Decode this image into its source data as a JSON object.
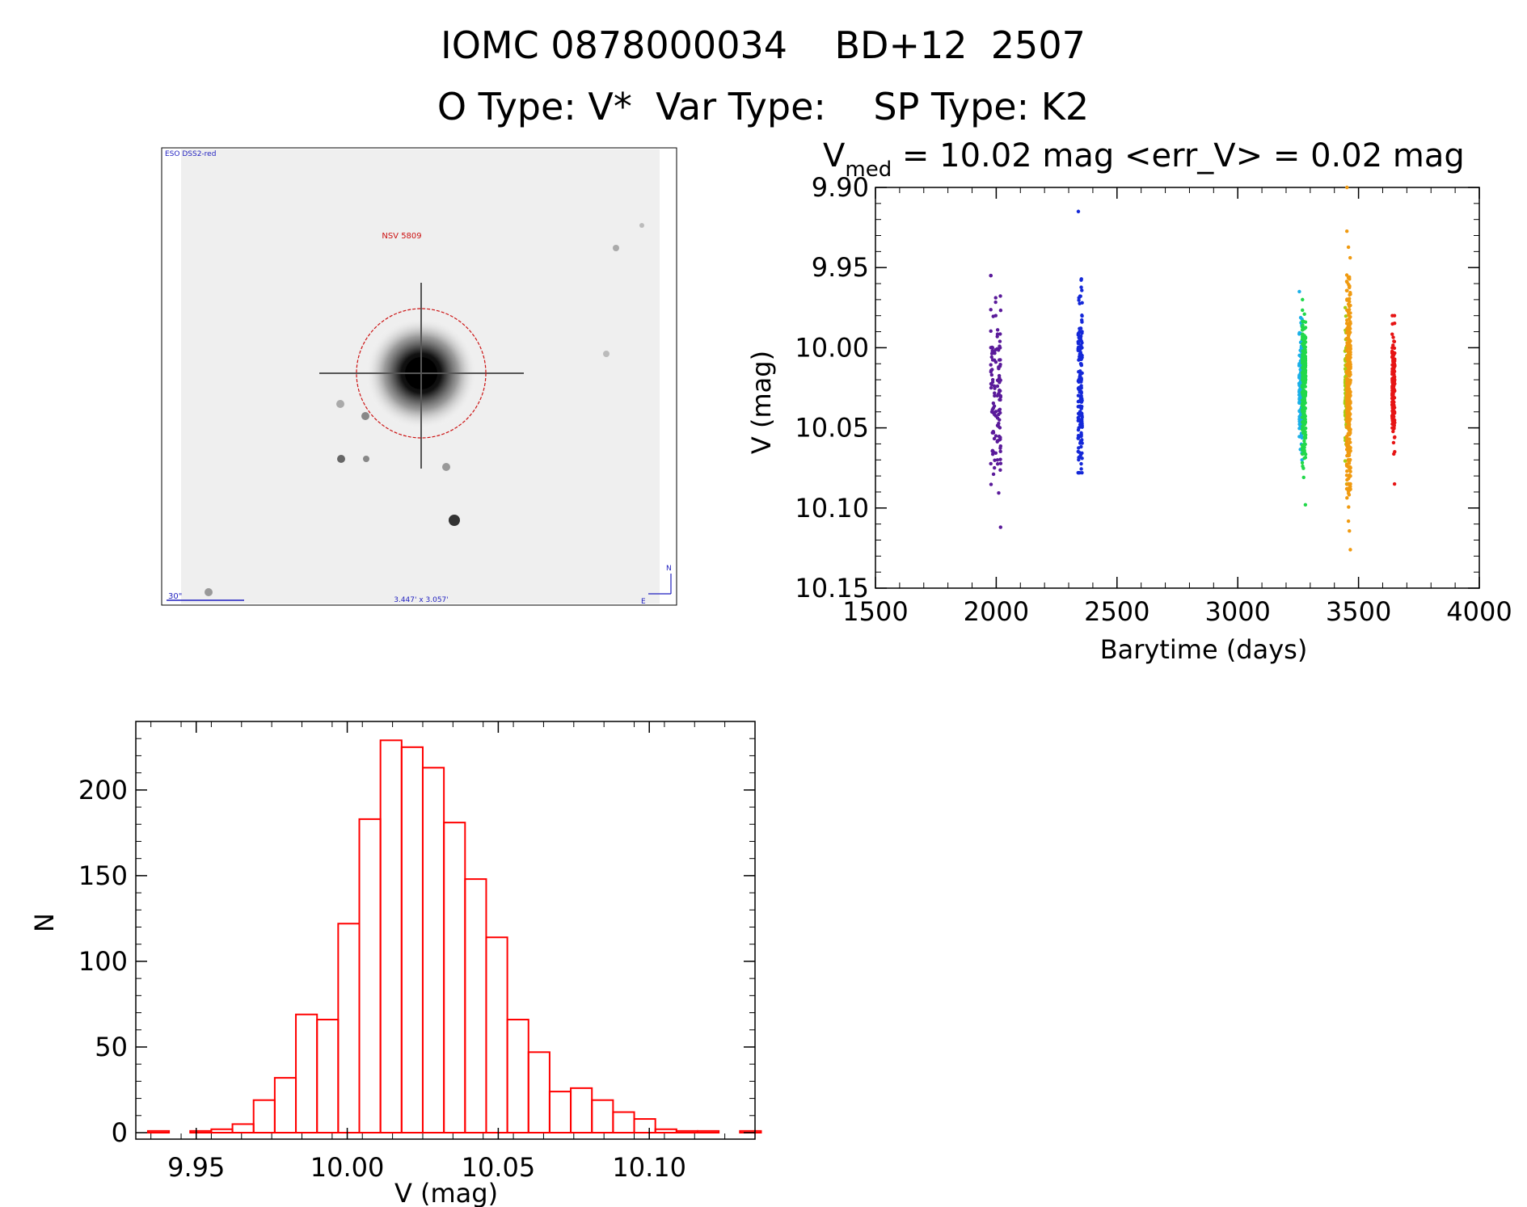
{
  "header": {
    "title": "IOMC 0878000034    BD+12  2507",
    "subtitle": "O Type: V*  Var Type:    SP Type: K2"
  },
  "finder": {
    "survey_label": "ESO DSS2-red",
    "object_label": "NSV 5809",
    "scale_label": "30\"",
    "fov_label": "3.447' x 3.057'",
    "north_label": "N",
    "east_label": "E"
  },
  "colors": {
    "axis": "#000000",
    "histogram": "#ff0000",
    "finder_annotations": "#1f1fbf",
    "finder_circle": "#cc1111"
  },
  "chart_data": [
    {
      "type": "scatter",
      "title_parts": {
        "v": "V",
        "sub": "med",
        "rest": " = 10.02 mag <err_V> = 0.02 mag"
      },
      "xlabel": "Barytime (days)",
      "ylabel": "V (mag)",
      "xlim": [
        1500,
        4000
      ],
      "ylim": [
        9.9,
        10.15
      ],
      "y_inverted": true,
      "xticks": [
        1500,
        2000,
        2500,
        3000,
        3500,
        4000
      ],
      "xtick_labels": [
        "1500",
        "2000",
        "2500",
        "3000",
        "3500",
        "4000"
      ],
      "yticks": [
        9.9,
        9.95,
        10.0,
        10.05,
        10.1,
        10.15
      ],
      "ytick_labels": [
        "9.90",
        "9.95",
        "10.00",
        "10.05",
        "10.10",
        "10.15"
      ],
      "grid": false,
      "series": [
        {
          "color": "#5a1a9a",
          "x": [
            1978,
            1982,
            1985,
            1988,
            1993,
            1998,
            2005,
            2010,
            2013,
            2016,
            2018
          ],
          "y": [
            10.015,
            10.04,
            10.0,
            10.065,
            10.03,
            9.98,
            10.07,
            10.02,
            10.045,
            10.0,
            10.03
          ],
          "y_min": 9.955,
          "y_max": 10.112,
          "n": 110
        },
        {
          "color": "#1428d8",
          "x": [
            2340,
            2342,
            2345,
            2348,
            2350,
            2352,
            2355
          ],
          "y": [
            10.0,
            10.02,
            9.99,
            10.04,
            10.01,
            10.03,
            10.0
          ],
          "y_min": 9.915,
          "y_max": 10.078,
          "n": 160
        },
        {
          "color": "#1ab0e8",
          "x": [
            3255,
            3260,
            3263,
            3266
          ],
          "y": [
            10.01,
            10.03,
            10.0,
            10.02
          ],
          "y_min": 9.965,
          "y_max": 10.07,
          "n": 140
        },
        {
          "color": "#22d84a",
          "x": [
            3268,
            3272,
            3276,
            3280
          ],
          "y": [
            10.02,
            10.04,
            10.0,
            10.03
          ],
          "y_min": 9.97,
          "y_max": 10.098,
          "n": 260
        },
        {
          "color": "#a8cc10",
          "x": [
            3445,
            3448,
            3451
          ],
          "y": [
            10.02,
            10.04,
            10.0
          ],
          "y_min": 9.975,
          "y_max": 10.085,
          "n": 90
        },
        {
          "color": "#f09a10",
          "x": [
            3452,
            3458,
            3462,
            3466
          ],
          "y": [
            10.02,
            10.04,
            10.0,
            10.03
          ],
          "y_min": 9.9,
          "y_max": 10.126,
          "n": 300
        },
        {
          "color": "#e61414",
          "x": [
            3640,
            3643,
            3646,
            3649
          ],
          "y": [
            10.02,
            10.03,
            10.01,
            10.04
          ],
          "y_min": 9.98,
          "y_max": 10.085,
          "n": 150
        }
      ]
    },
    {
      "type": "histogram",
      "xlabel": "V (mag)",
      "ylabel": "N",
      "xlim": [
        9.93,
        10.135
      ],
      "ylim": [
        0,
        240
      ],
      "xticks": [
        9.95,
        10.0,
        10.05,
        10.1
      ],
      "xtick_labels": [
        "9.95",
        "10.00",
        "10.05",
        "10.10"
      ],
      "yticks": [
        0,
        50,
        100,
        150,
        200
      ],
      "ytick_labels": [
        "0",
        "50",
        "100",
        "150",
        "200"
      ],
      "grid": false,
      "bin_start": 9.934,
      "bin_width": 0.007,
      "counts": [
        1,
        0,
        1,
        2,
        5,
        19,
        32,
        69,
        66,
        122,
        183,
        229,
        225,
        213,
        181,
        148,
        114,
        66,
        47,
        24,
        26,
        19,
        12,
        8,
        2,
        1,
        1,
        0,
        1
      ]
    }
  ]
}
